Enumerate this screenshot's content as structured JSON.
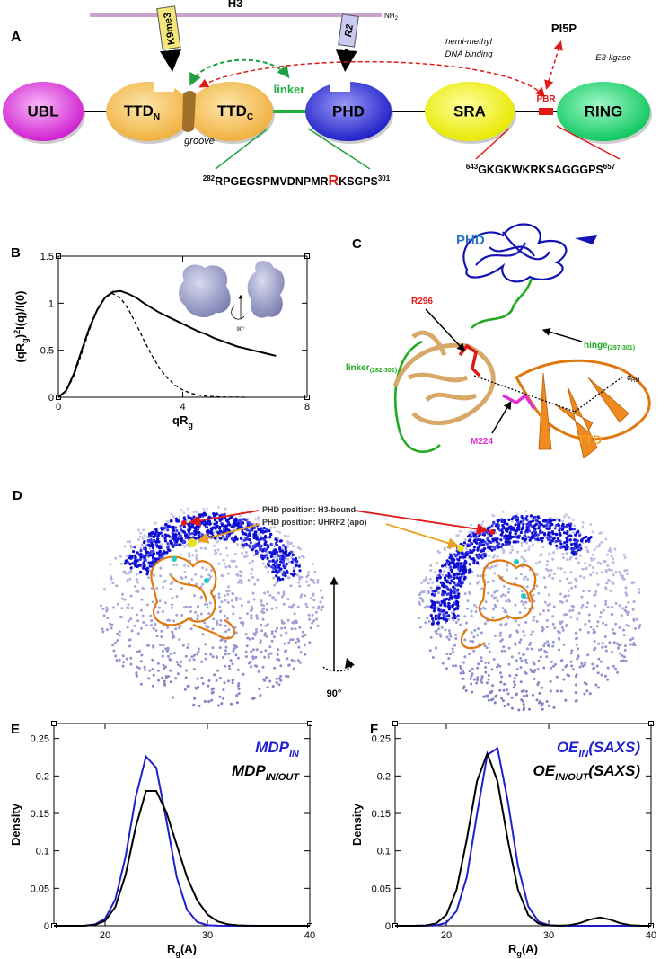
{
  "panel_a": {
    "label": "A",
    "h3": "H3",
    "nh2": {
      "main": "NH",
      "sub": "2"
    },
    "k9me3": "K9me3",
    "r2": "R2",
    "domains": {
      "ubl": "UBL",
      "ttd_n": {
        "main": "TTD",
        "sub": "N"
      },
      "ttd_c": {
        "main": "TTD",
        "sub": "C"
      },
      "phd": "PHD",
      "sra": "SRA",
      "ring": "RING"
    },
    "linker": "linker",
    "groove": "groove",
    "pbr": "PBR",
    "pi5p": "PI5P",
    "hemi": [
      "hemi-methyl",
      "DNA binding"
    ],
    "e3": "E3-ligase",
    "seq1": {
      "start": "282",
      "before": "RPGEGSPMVDNPMR",
      "highlight": "R",
      "after": "KSGPS",
      "end": "301"
    },
    "seq2": {
      "start": "643",
      "body": "GKGKWKRKSAGGGPS",
      "end": "657"
    }
  },
  "panel_c": {
    "label": "C",
    "phd": "PHD",
    "r296": "R296",
    "linker": {
      "main": "linker",
      "sub": "(282-301)"
    },
    "hinge": {
      "main": "hinge",
      "sub": "(297-301)"
    },
    "drm": {
      "main": "d",
      "sub": "RM"
    },
    "m224": "M224",
    "ttd": "TTD"
  },
  "panel_d": {
    "label": "D",
    "h3_bound": "PHD position: H3-bound",
    "apo": "PHD position: UHRF2 (apo)",
    "rotation": "90°"
  },
  "chart_data": [
    {
      "type": "line",
      "panel": "B",
      "inset_label": "90°",
      "x": [
        0,
        0.25,
        0.5,
        0.75,
        1,
        1.25,
        1.5,
        1.75,
        2,
        2.25,
        2.5,
        2.75,
        3,
        3.25,
        3.5,
        3.75,
        4,
        4.25,
        4.5,
        4.75,
        5,
        5.25,
        5.5,
        5.75,
        6,
        6.25,
        6.5,
        6.75,
        7
      ],
      "series": [
        {
          "color": "#000000",
          "values": [
            0,
            0.07,
            0.25,
            0.5,
            0.74,
            0.93,
            1.06,
            1.12,
            1.13,
            1.1,
            1.06,
            1.0,
            0.95,
            0.9,
            0.86,
            0.82,
            0.78,
            0.74,
            0.7,
            0.67,
            0.63,
            0.6,
            0.57,
            0.54,
            0.52,
            0.5,
            0.48,
            0.46,
            0.44
          ]
        },
        {
          "color": "#000000",
          "dashed": true,
          "values": [
            0,
            0.061,
            0.23,
            0.466,
            0.717,
            0.928,
            1.063,
            1.103,
            1.054,
            0.937,
            0.778,
            0.608,
            0.448,
            0.312,
            0.207,
            0.129,
            0.077,
            0.044,
            0.024,
            0.012,
            0.006,
            0.003,
            0.001,
            0.001,
            0,
            null,
            null,
            null,
            null
          ]
        }
      ],
      "xlim": [
        0,
        8
      ],
      "ylim": [
        0,
        1.5
      ],
      "xticks": [
        0,
        4,
        8
      ],
      "yticks": [
        0,
        0.5,
        1,
        1.5
      ],
      "x_label": [
        {
          "text": "qR"
        },
        {
          "text": "g",
          "shift": "sub"
        }
      ],
      "y_label": [
        {
          "text": "(qR"
        },
        {
          "text": "g",
          "shift": "sub"
        },
        {
          "text": ")"
        },
        {
          "text": "2",
          "shift": "sup"
        },
        {
          "text": "I(q)/I(0)"
        }
      ]
    },
    {
      "type": "line",
      "panel": "E",
      "legend": "upper right",
      "x": [
        15,
        16,
        17,
        18,
        19,
        20,
        21,
        22,
        23,
        24,
        25,
        26,
        27,
        28,
        29,
        30,
        31,
        32,
        33,
        34,
        35,
        36,
        37,
        38,
        39,
        40
      ],
      "series": [
        {
          "name": "MDP",
          "name_sub": "IN",
          "color": "#1f1fd0",
          "values": [
            0,
            0,
            0,
            0.0002,
            0.0018,
            0.0094,
            0.035,
            0.092,
            0.172,
            0.226,
            0.211,
            0.14,
            0.065,
            0.0215,
            0.005,
            0.0008,
            0.0001,
            0,
            0,
            0,
            0,
            0,
            0,
            0,
            0,
            0
          ]
        },
        {
          "name": "MDP",
          "name_sub": "IN/OUT",
          "color": "#000000",
          "values": [
            0,
            0,
            0,
            0.0001,
            0.0012,
            0.0065,
            0.025,
            0.068,
            0.132,
            0.18,
            0.18,
            0.151,
            0.108,
            0.065,
            0.034,
            0.015,
            0.0057,
            0.0019,
            0.0006,
            0.0002,
            0,
            0,
            0,
            0,
            0,
            0
          ]
        }
      ],
      "xlim": [
        15,
        40
      ],
      "ylim": [
        0,
        0.27
      ],
      "xticks": [
        20,
        30,
        40
      ],
      "yticks": [
        0,
        0.05,
        0.1,
        0.15,
        0.2,
        0.25
      ],
      "x_label": [
        {
          "text": "R"
        },
        {
          "text": "g",
          "shift": "sub"
        },
        {
          "text": "(A)"
        }
      ],
      "y_label": [
        {
          "text": "Density"
        }
      ]
    },
    {
      "type": "line",
      "panel": "F",
      "legend": "upper right",
      "x": [
        15,
        16,
        17,
        18,
        19,
        20,
        21,
        22,
        23,
        24,
        25,
        26,
        27,
        28,
        29,
        30,
        31,
        32,
        33,
        34,
        35,
        36,
        37,
        38,
        39,
        40
      ],
      "series": [
        {
          "name": "OE",
          "name_sub": "IN",
          "name_suffix": "(SAXS)",
          "color": "#1f1fd0",
          "values": [
            0,
            0,
            0,
            0.0001,
            0.0005,
            0.0039,
            0.0195,
            0.065,
            0.149,
            0.228,
            0.237,
            0.167,
            0.08,
            0.026,
            0.0056,
            0.0008,
            0.0001,
            0,
            0,
            0,
            0,
            0,
            0,
            0,
            0,
            0
          ]
        },
        {
          "name": "OE",
          "name_sub": "IN/OUT",
          "name_suffix": "(SAXS)",
          "color": "#000000",
          "values": [
            0,
            0,
            0.0001,
            0.0005,
            0.003,
            0.0144,
            0.048,
            0.115,
            0.193,
            0.23,
            0.193,
            0.115,
            0.048,
            0.0144,
            0.003,
            0.0005,
            0.0001,
            0.0008,
            0.0034,
            0.0082,
            0.011,
            0.0082,
            0.0034,
            0.0008,
            0.0001,
            0
          ]
        }
      ],
      "xlim": [
        15,
        40
      ],
      "ylim": [
        0,
        0.27
      ],
      "xticks": [
        20,
        30,
        40
      ],
      "yticks": [
        0,
        0.05,
        0.1,
        0.15,
        0.2,
        0.25
      ],
      "x_label": [
        {
          "text": "R"
        },
        {
          "text": "g",
          "shift": "sub"
        },
        {
          "text": "(A)"
        }
      ],
      "y_label": [
        {
          "text": "Density"
        }
      ]
    }
  ]
}
